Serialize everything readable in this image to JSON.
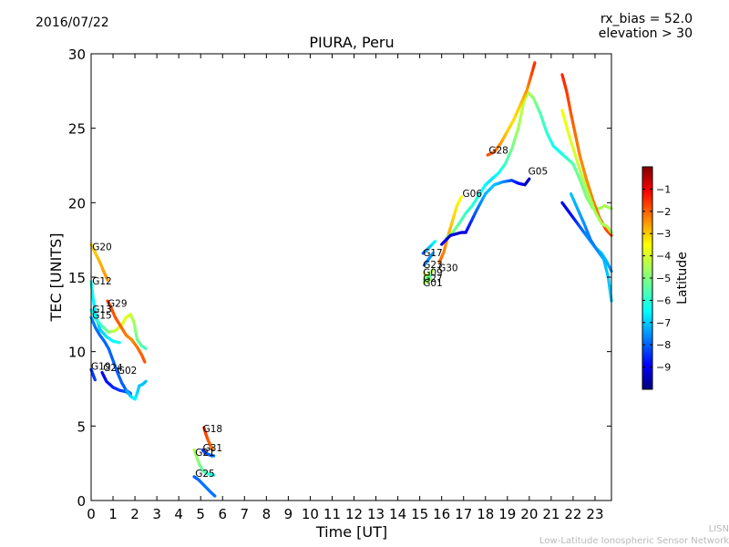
{
  "header": {
    "date": "2016/07/22",
    "rx_bias": "rx_bias = 52.0",
    "elevation": "elevation > 30"
  },
  "footer": {
    "line1": "LISN",
    "line2": "Low-Latitude Ionospheric Sensor Network"
  },
  "chart_data": {
    "type": "scatter",
    "title": "PIURA, Peru",
    "xlabel": "Time [UT]",
    "ylabel": "TEC [UNITS]",
    "xlim": [
      0,
      23.75
    ],
    "ylim": [
      0,
      30
    ],
    "xticks": [
      0,
      1,
      2,
      3,
      4,
      5,
      6,
      7,
      8,
      9,
      10,
      11,
      12,
      13,
      14,
      15,
      16,
      17,
      18,
      19,
      20,
      21,
      22,
      23
    ],
    "yticks": [
      0,
      5,
      10,
      15,
      20,
      25,
      30
    ],
    "grid": false,
    "colorbar": {
      "label": "Latitude",
      "range": [
        -10,
        0
      ],
      "ticks": [
        -9,
        -8,
        -7,
        -6,
        -5,
        -4,
        -3,
        -2,
        -1
      ],
      "colormap": "jet",
      "colors": [
        "#00007f",
        "#0000ff",
        "#007fff",
        "#00ffff",
        "#7fff7f",
        "#ffff00",
        "#ff7f00",
        "#ff0000",
        "#7f0000"
      ]
    },
    "series": [
      {
        "name": "G20",
        "label_at": [
          0.05,
          16.8
        ],
        "points": [
          [
            0.0,
            17.2,
            -3.2
          ],
          [
            0.2,
            16.6,
            -3.0
          ],
          [
            0.4,
            16.0,
            -2.8
          ],
          [
            0.6,
            15.3,
            -2.6
          ],
          [
            0.75,
            14.8,
            -2.5
          ]
        ]
      },
      {
        "name": "G12",
        "label_at": [
          0.05,
          14.5
        ],
        "points": [
          [
            0.0,
            14.7,
            -6.0
          ],
          [
            0.1,
            13.5,
            -6.5
          ],
          [
            0.2,
            12.5,
            -6.8
          ],
          [
            0.4,
            11.5,
            -7.0
          ],
          [
            0.7,
            11.0,
            -6.8
          ],
          [
            1.0,
            10.7,
            -6.5
          ],
          [
            1.3,
            10.6,
            -6.2
          ]
        ]
      },
      {
        "name": "G13",
        "label_at": [
          0.05,
          12.6
        ],
        "points": [
          [
            0.0,
            12.8,
            -6.5
          ],
          [
            0.2,
            12.2,
            -6.2
          ],
          [
            0.5,
            11.7,
            -5.8
          ],
          [
            0.8,
            11.3,
            -5.0
          ],
          [
            1.1,
            11.4,
            -4.2
          ],
          [
            1.4,
            11.8,
            -3.8
          ],
          [
            1.6,
            12.3,
            -3.8
          ],
          [
            1.8,
            12.5,
            -4.0
          ],
          [
            1.95,
            12.0,
            -4.5
          ],
          [
            2.1,
            10.8,
            -5.2
          ],
          [
            2.3,
            10.4,
            -5.5
          ],
          [
            2.5,
            10.2,
            -5.7
          ]
        ]
      },
      {
        "name": "G15",
        "label_at": [
          0.05,
          12.2
        ],
        "points": [
          [
            0.0,
            12.3,
            -7.5
          ],
          [
            0.2,
            11.6,
            -7.8
          ],
          [
            0.4,
            11.1,
            -7.9
          ],
          [
            0.6,
            10.7,
            -7.9
          ],
          [
            0.8,
            10.2,
            -7.9
          ],
          [
            1.0,
            9.4,
            -8.0
          ],
          [
            1.2,
            8.6,
            -8.0
          ],
          [
            1.4,
            7.9,
            -8.0
          ],
          [
            1.6,
            7.4,
            -8.0
          ],
          [
            1.8,
            7.2,
            -8.0
          ]
        ]
      },
      {
        "name": "G29",
        "label_at": [
          0.75,
          13.0
        ],
        "points": [
          [
            0.75,
            13.4,
            -1.6
          ],
          [
            0.9,
            13.0,
            -1.8
          ],
          [
            1.1,
            12.3,
            -1.9
          ],
          [
            1.35,
            11.7,
            -2.0
          ],
          [
            1.6,
            11.1,
            -2.2
          ],
          [
            1.85,
            10.8,
            -2.4
          ],
          [
            2.1,
            10.3,
            -2.2
          ],
          [
            2.3,
            9.8,
            -2.0
          ],
          [
            2.45,
            9.3,
            -1.9
          ]
        ]
      },
      {
        "name": "G19",
        "label_at": [
          0.0,
          8.8
        ],
        "points": [
          [
            0.0,
            8.8,
            -8.4
          ],
          [
            0.1,
            8.4,
            -8.4
          ],
          [
            0.18,
            8.1,
            -8.3
          ]
        ]
      },
      {
        "name": "G24",
        "label_at": [
          0.55,
          8.7
        ],
        "points": [
          [
            0.5,
            8.6,
            -9.0
          ],
          [
            0.7,
            8.0,
            -8.8
          ],
          [
            1.0,
            7.6,
            -8.6
          ],
          [
            1.3,
            7.4,
            -8.4
          ],
          [
            1.6,
            7.3,
            -8.2
          ],
          [
            1.8,
            7.1,
            -8.0
          ]
        ]
      },
      {
        "name": "G02",
        "label_at": [
          1.2,
          8.5
        ],
        "points": [
          [
            1.6,
            7.4,
            -7.5
          ],
          [
            1.8,
            7.0,
            -7.0
          ],
          [
            2.0,
            6.8,
            -6.5
          ],
          [
            2.1,
            7.2,
            -6.8
          ],
          [
            2.2,
            7.7,
            -7.0
          ],
          [
            2.35,
            7.8,
            -7.0
          ],
          [
            2.5,
            8.0,
            -7.1
          ]
        ]
      },
      {
        "name": "G18",
        "label_at": [
          5.1,
          4.6
        ],
        "points": [
          [
            5.15,
            4.9,
            -1.6
          ],
          [
            5.25,
            4.4,
            -1.7
          ],
          [
            5.35,
            4.0,
            -1.9
          ],
          [
            5.45,
            3.7,
            -2.0
          ],
          [
            5.55,
            3.4,
            -2.2
          ]
        ]
      },
      {
        "name": "G31",
        "label_at": [
          5.1,
          3.3
        ],
        "points": [
          [
            5.1,
            3.4,
            -8.5
          ],
          [
            5.2,
            3.2,
            -8.3
          ],
          [
            5.35,
            3.1,
            -8.1
          ],
          [
            5.5,
            3.0,
            -7.9
          ],
          [
            5.6,
            3.0,
            -7.8
          ]
        ]
      },
      {
        "name": "G21",
        "label_at": [
          4.75,
          3.0
        ],
        "points": [
          [
            4.7,
            3.4,
            -4.4
          ],
          [
            4.8,
            3.0,
            -4.6
          ],
          [
            4.95,
            2.4,
            -5.0
          ],
          [
            5.1,
            2.0,
            -5.4
          ],
          [
            5.3,
            1.8,
            -5.8
          ],
          [
            5.6,
            1.7,
            -6.2
          ]
        ]
      },
      {
        "name": "G25",
        "label_at": [
          4.75,
          1.6
        ],
        "points": [
          [
            4.7,
            1.6,
            -8.0
          ],
          [
            4.9,
            1.4,
            -7.9
          ],
          [
            5.1,
            1.1,
            -7.8
          ],
          [
            5.3,
            0.8,
            -7.8
          ],
          [
            5.5,
            0.5,
            -7.8
          ],
          [
            5.65,
            0.3,
            -7.8
          ]
        ]
      },
      {
        "name": "G17",
        "label_at": [
          15.15,
          16.4
        ],
        "points": [
          [
            15.15,
            16.6,
            -8.0
          ],
          [
            15.3,
            16.8,
            -7.5
          ],
          [
            15.5,
            17.1,
            -7.0
          ],
          [
            15.7,
            17.4,
            -6.5
          ]
        ]
      },
      {
        "name": "G23",
        "label_at": [
          15.15,
          15.6
        ],
        "points": [
          [
            15.2,
            15.8,
            -7.8
          ],
          [
            15.4,
            16.2,
            -7.6
          ],
          [
            15.6,
            16.6,
            -7.4
          ]
        ]
      },
      {
        "name": "G09",
        "label_at": [
          15.15,
          15.1
        ],
        "points": [
          [
            15.2,
            15.3,
            -4.0
          ],
          [
            15.3,
            15.0,
            -4.2
          ],
          [
            15.45,
            15.2,
            -4.3
          ],
          [
            15.6,
            15.5,
            -4.4
          ]
        ]
      },
      {
        "name": "G27",
        "label_at": [
          15.15,
          14.7
        ],
        "points": [
          [
            15.2,
            14.8,
            -5.0
          ],
          [
            15.35,
            14.9,
            -5.3
          ],
          [
            15.5,
            15.1,
            -5.6
          ]
        ]
      },
      {
        "name": "G01",
        "label_at": [
          15.15,
          14.4
        ],
        "points": [
          [
            15.2,
            14.6,
            -4.2
          ],
          [
            15.35,
            14.7,
            -4.5
          ],
          [
            15.5,
            14.9,
            -4.8
          ]
        ]
      },
      {
        "name": "G30",
        "label_at": [
          15.85,
          15.4
        ],
        "points": [
          [
            15.9,
            16.0,
            -2.0
          ],
          [
            16.1,
            16.7,
            -2.3
          ],
          [
            16.3,
            17.8,
            -2.6
          ],
          [
            16.5,
            18.8,
            -3.0
          ],
          [
            16.7,
            19.8,
            -3.3
          ],
          [
            16.9,
            20.4,
            -3.5
          ]
        ]
      },
      {
        "name": "G06",
        "label_at": [
          16.95,
          20.4
        ],
        "points": [
          [
            16.2,
            17.6,
            -4.8
          ],
          [
            16.5,
            18.0,
            -5.0
          ],
          [
            16.8,
            18.6,
            -5.5
          ],
          [
            17.1,
            19.3,
            -5.8
          ],
          [
            17.4,
            19.8,
            -6.0
          ],
          [
            17.7,
            20.5,
            -6.2
          ],
          [
            18.0,
            21.2,
            -6.5
          ],
          [
            18.3,
            21.6,
            -6.8
          ],
          [
            18.6,
            22.0,
            -6.4
          ],
          [
            18.9,
            22.6,
            -5.8
          ],
          [
            19.2,
            23.6,
            -5.2
          ],
          [
            19.5,
            25.0,
            -4.6
          ],
          [
            19.75,
            26.8,
            -4.2
          ],
          [
            19.95,
            27.4,
            -4.3
          ],
          [
            20.2,
            27.0,
            -4.8
          ],
          [
            20.5,
            26.0,
            -5.5
          ],
          [
            20.8,
            24.7,
            -6.0
          ],
          [
            21.1,
            23.8,
            -6.3
          ],
          [
            21.4,
            23.4,
            -6.3
          ],
          [
            21.7,
            23.0,
            -6.0
          ],
          [
            22.0,
            22.6,
            -5.5
          ],
          [
            22.3,
            21.6,
            -5.2
          ],
          [
            22.6,
            20.4,
            -5.0
          ],
          [
            22.9,
            19.6,
            -4.8
          ],
          [
            23.2,
            19.6,
            -4.6
          ],
          [
            23.45,
            19.8,
            -4.5
          ],
          [
            23.75,
            19.6,
            -4.6
          ]
        ]
      },
      {
        "name": "G28",
        "label_at": [
          18.15,
          23.3
        ],
        "points": [
          [
            18.1,
            23.2,
            -1.8
          ],
          [
            18.4,
            23.4,
            -2.0
          ],
          [
            18.7,
            24.0,
            -2.5
          ],
          [
            19.0,
            24.8,
            -3.0
          ],
          [
            19.3,
            25.6,
            -3.2
          ],
          [
            19.6,
            26.6,
            -3.0
          ],
          [
            19.9,
            27.6,
            -2.5
          ],
          [
            20.1,
            28.6,
            -1.8
          ],
          [
            20.25,
            29.4,
            -1.5
          ]
        ]
      },
      {
        "name": "G05",
        "label_at": [
          19.95,
          21.9
        ],
        "points": [
          [
            16.0,
            17.2,
            -9.0
          ],
          [
            16.4,
            17.8,
            -9.2
          ],
          [
            16.9,
            18.0,
            -9.4
          ],
          [
            17.1,
            18.0,
            -9.0
          ],
          [
            17.6,
            19.5,
            -8.0
          ],
          [
            18.0,
            20.6,
            -7.2
          ],
          [
            18.4,
            21.2,
            -7.0
          ],
          [
            18.8,
            21.4,
            -7.5
          ],
          [
            19.2,
            21.5,
            -8.2
          ],
          [
            19.5,
            21.3,
            -8.8
          ],
          [
            19.8,
            21.2,
            -9.3
          ],
          [
            20.0,
            21.6,
            -9.5
          ]
        ]
      },
      {
        "name": "",
        "label_at": null,
        "points": [
          [
            21.5,
            28.6,
            -1.4
          ],
          [
            21.7,
            27.5,
            -1.6
          ],
          [
            21.9,
            26.0,
            -1.9
          ],
          [
            22.1,
            24.6,
            -2.1
          ],
          [
            22.3,
            23.2,
            -2.3
          ],
          [
            22.6,
            21.6,
            -2.4
          ],
          [
            22.9,
            20.2,
            -2.3
          ],
          [
            23.2,
            19.0,
            -2.0
          ],
          [
            23.5,
            18.2,
            -1.8
          ],
          [
            23.75,
            17.8,
            -1.7
          ]
        ]
      },
      {
        "name": "",
        "label_at": null,
        "points": [
          [
            21.5,
            26.2,
            -3.6
          ],
          [
            21.8,
            24.6,
            -3.8
          ],
          [
            22.1,
            23.2,
            -4.0
          ],
          [
            22.4,
            21.8,
            -4.3
          ],
          [
            22.7,
            20.6,
            -4.5
          ],
          [
            23.0,
            19.4,
            -4.6
          ],
          [
            23.3,
            18.6,
            -4.5
          ],
          [
            23.55,
            18.4,
            -4.4
          ],
          [
            23.75,
            18.0,
            -4.6
          ]
        ]
      },
      {
        "name": "",
        "label_at": null,
        "points": [
          [
            21.5,
            20.0,
            -9.2
          ],
          [
            21.8,
            19.4,
            -9.0
          ],
          [
            22.1,
            18.8,
            -8.6
          ],
          [
            22.4,
            18.2,
            -8.0
          ],
          [
            22.7,
            17.6,
            -7.5
          ],
          [
            23.0,
            17.0,
            -7.2
          ],
          [
            23.3,
            16.6,
            -7.0
          ],
          [
            23.55,
            16.0,
            -7.2
          ],
          [
            23.75,
            15.4,
            -7.5
          ]
        ]
      },
      {
        "name": "",
        "label_at": null,
        "points": [
          [
            21.9,
            20.6,
            -7.0
          ],
          [
            22.2,
            19.6,
            -7.3
          ],
          [
            22.5,
            18.6,
            -7.5
          ],
          [
            22.8,
            17.5,
            -7.8
          ],
          [
            23.1,
            16.8,
            -7.6
          ],
          [
            23.4,
            16.2,
            -7.2
          ],
          [
            23.6,
            15.0,
            -7.0
          ],
          [
            23.75,
            13.4,
            -7.0
          ]
        ]
      }
    ]
  }
}
